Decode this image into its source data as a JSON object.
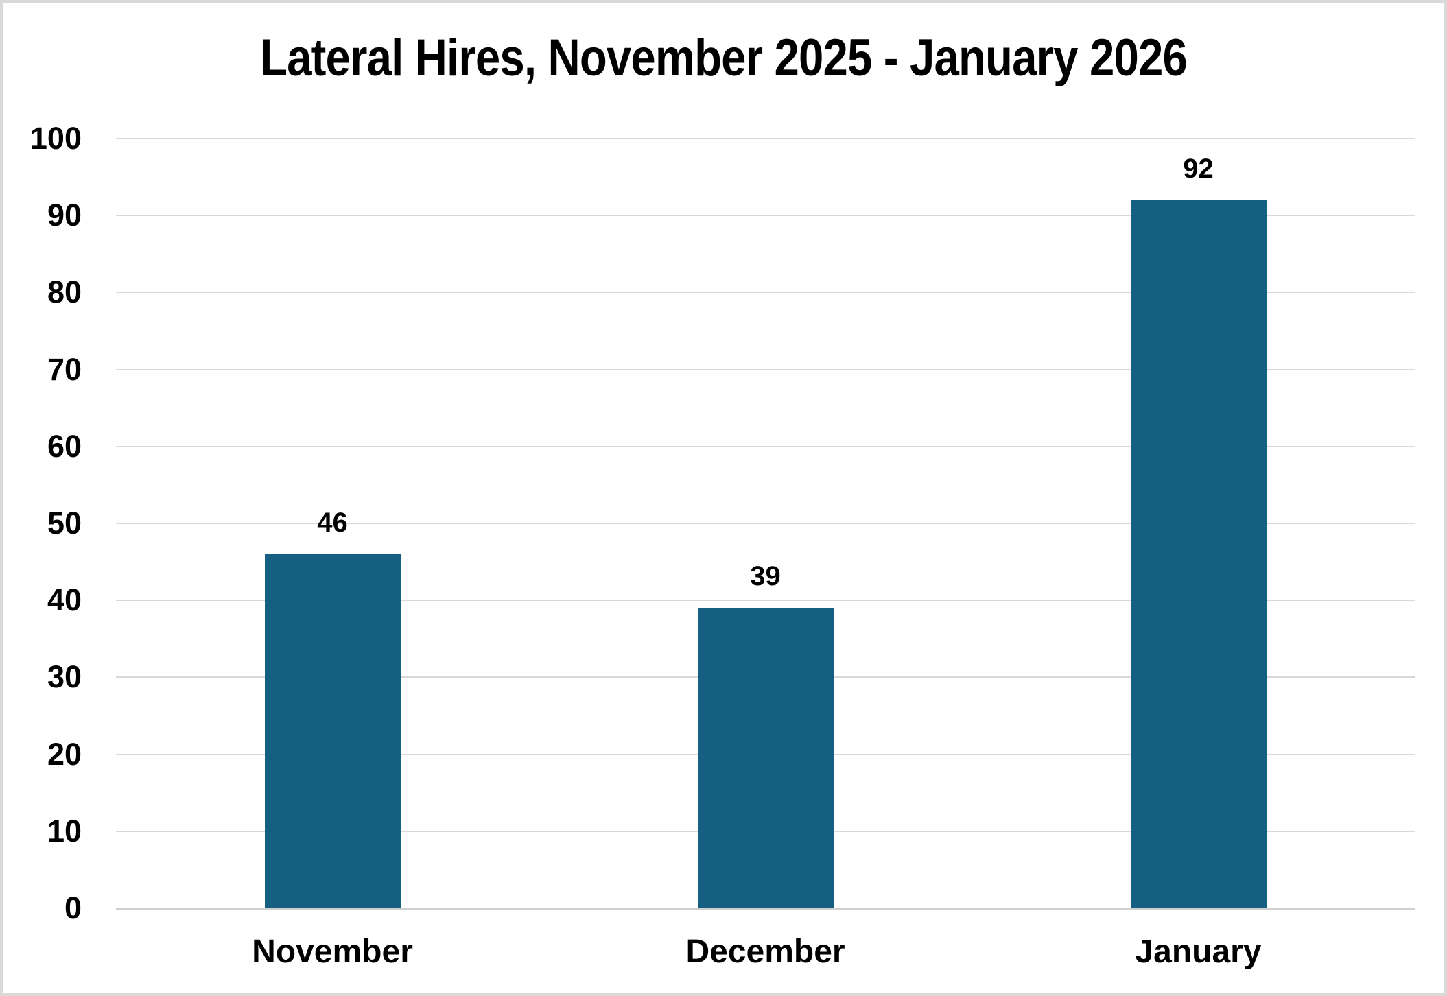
{
  "chart_data": {
    "type": "bar",
    "title": "Lateral Hires, November 2025 - January 2026",
    "categories": [
      "November",
      "December",
      "January"
    ],
    "values": [
      46,
      39,
      92
    ],
    "data_labels": [
      46,
      39,
      92
    ],
    "xlabel": "",
    "ylabel": "",
    "ylim": [
      0,
      100
    ],
    "yticks": [
      0,
      10,
      20,
      30,
      40,
      50,
      60,
      70,
      80,
      90,
      100
    ],
    "grid": true,
    "legend_position": "none",
    "colors": {
      "bar": "#155f82",
      "gridline": "#d9d9d9",
      "axis_line": "#d0d0d0",
      "text": "#000000",
      "frame_border": "#d9d9d9",
      "background": "#ffffff"
    }
  }
}
